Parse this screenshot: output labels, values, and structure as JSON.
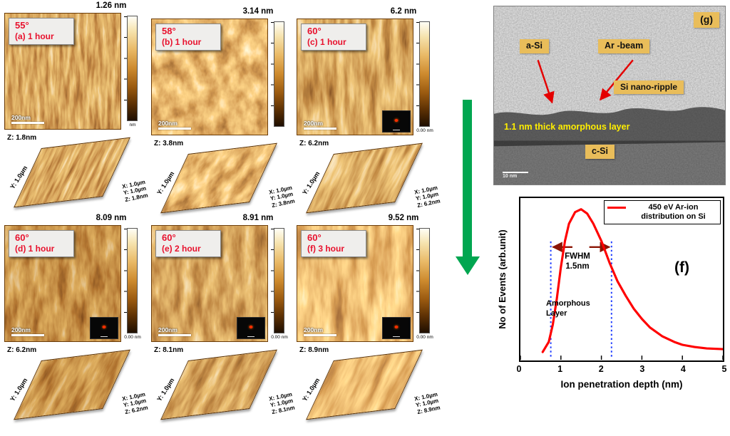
{
  "afm_panels": [
    {
      "angle": "55°",
      "time_label": "(a) 1 hour",
      "colorbar_max": "1.26 nm",
      "colorbar_min": "nm",
      "scalebar_label": "200nm",
      "z_label": "Z: 1.8nm",
      "y_axis_label": "Y: 1.0µm",
      "axis_x": "X: 1.0µm",
      "axis_y": "Y: 1.0µm",
      "axis_z": "Z: 1.8nm",
      "has_inset": false
    },
    {
      "angle": "58°",
      "time_label": "(b) 1 hour",
      "colorbar_max": "3.14 nm",
      "colorbar_min": "",
      "scalebar_label": "200nm",
      "z_label": "Z: 3.8nm",
      "y_axis_label": "Y: 1.0µm",
      "axis_x": "X: 1.0µm",
      "axis_y": "Y: 1.0µm",
      "axis_z": "Z: 3.8nm",
      "has_inset": false
    },
    {
      "angle": "60°",
      "time_label": "(c) 1 hour",
      "colorbar_max": "6.2 nm",
      "colorbar_min": "0.00 nm",
      "scalebar_label": "200nm",
      "z_label": "Z: 6.2nm",
      "y_axis_label": "Y: 1.0µm",
      "axis_x": "X: 1.0µm",
      "axis_y": "Y: 1.0µm",
      "axis_z": "Z: 6.2nm",
      "has_inset": true
    },
    {
      "angle": "60°",
      "time_label": "(d) 1 hour",
      "colorbar_max": "8.09 nm",
      "colorbar_min": "0.00 nm",
      "scalebar_label": "200nm",
      "z_label": "Z: 6.2nm",
      "y_axis_label": "Y: 1.0µm",
      "axis_x": "X: 1.0µm",
      "axis_y": "Y: 1.0µm",
      "axis_z": "Z: 6.2nm",
      "has_inset": true
    },
    {
      "angle": "60°",
      "time_label": "(e) 2 hour",
      "colorbar_max": "8.91 nm",
      "colorbar_min": "0.00 nm",
      "scalebar_label": "200nm",
      "z_label": "Z: 8.1nm",
      "y_axis_label": "Y: 1.0µm",
      "axis_x": "X: 1.0µm",
      "axis_y": "Y: 1.0µm",
      "axis_z": "Z: 8.1nm",
      "has_inset": true
    },
    {
      "angle": "60°",
      "time_label": "(f) 3 hour",
      "colorbar_max": "9.52 nm",
      "colorbar_min": "0.00 nm",
      "scalebar_label": "200nm",
      "z_label": "Z: 8.9nm",
      "y_axis_label": "Y: 1.0µm",
      "axis_x": "X: 1.0µm",
      "axis_y": "Y: 1.0µm",
      "axis_z": "Z: 8.9nm",
      "has_inset": true
    }
  ],
  "tem": {
    "panel_label": "(g)",
    "label_a_si": "a-Si",
    "label_ar_beam": "Ar -beam",
    "label_ripple": "Si nano-ripple",
    "label_amorphous": "1.1 nm thick amorphous layer",
    "label_c_si": "c-Si",
    "scalebar_label": "10 nm"
  },
  "plot": {
    "panel_label": "(f)",
    "legend_label": "450 eV Ar-ion distribution on Si",
    "fwhm_line1": "FWHM",
    "fwhm_line2": "1.5nm",
    "amorphous_line1": "Amorphous",
    "amorphous_line2": "Layer",
    "xlabel": "Ion penetration depth (nm)",
    "ylabel": "No of Events (arb.unit)",
    "xticks": [
      "0",
      "1",
      "2",
      "3",
      "4",
      "5"
    ]
  },
  "chart_data": {
    "type": "line",
    "title": "",
    "xlabel": "Ion penetration depth (nm)",
    "ylabel": "No of Events (arb.unit)",
    "xlim": [
      0,
      5
    ],
    "xticks": [
      0,
      1,
      2,
      3,
      4,
      5
    ],
    "grid": false,
    "legend_position": "top-right",
    "series": [
      {
        "name": "450 eV Ar-ion distribution on Si",
        "color": "#ff0000",
        "x": [
          0.55,
          0.7,
          0.8,
          0.9,
          1.0,
          1.1,
          1.2,
          1.35,
          1.5,
          1.65,
          1.8,
          2.0,
          2.2,
          2.4,
          2.6,
          2.8,
          3.0,
          3.2,
          3.5,
          3.8,
          4.0,
          4.3,
          4.6,
          5.0
        ],
        "y": [
          0.01,
          0.08,
          0.2,
          0.38,
          0.6,
          0.78,
          0.9,
          0.98,
          1.0,
          0.97,
          0.9,
          0.78,
          0.63,
          0.5,
          0.4,
          0.31,
          0.24,
          0.18,
          0.12,
          0.08,
          0.06,
          0.045,
          0.035,
          0.03
        ]
      }
    ],
    "fwhm_x": [
      0.75,
      2.25
    ],
    "fwhm_value_nm": 1.5,
    "annotations": [
      "FWHM 1.5nm",
      "Amorphous Layer"
    ]
  },
  "colors": {
    "accent_green": "#00a650",
    "curve_red": "#ff0000",
    "label_red": "#e8112d",
    "tan_box": "#e9bd5a",
    "dotted_blue": "#1f3cff",
    "arrow_dark_red": "#8b1505"
  }
}
